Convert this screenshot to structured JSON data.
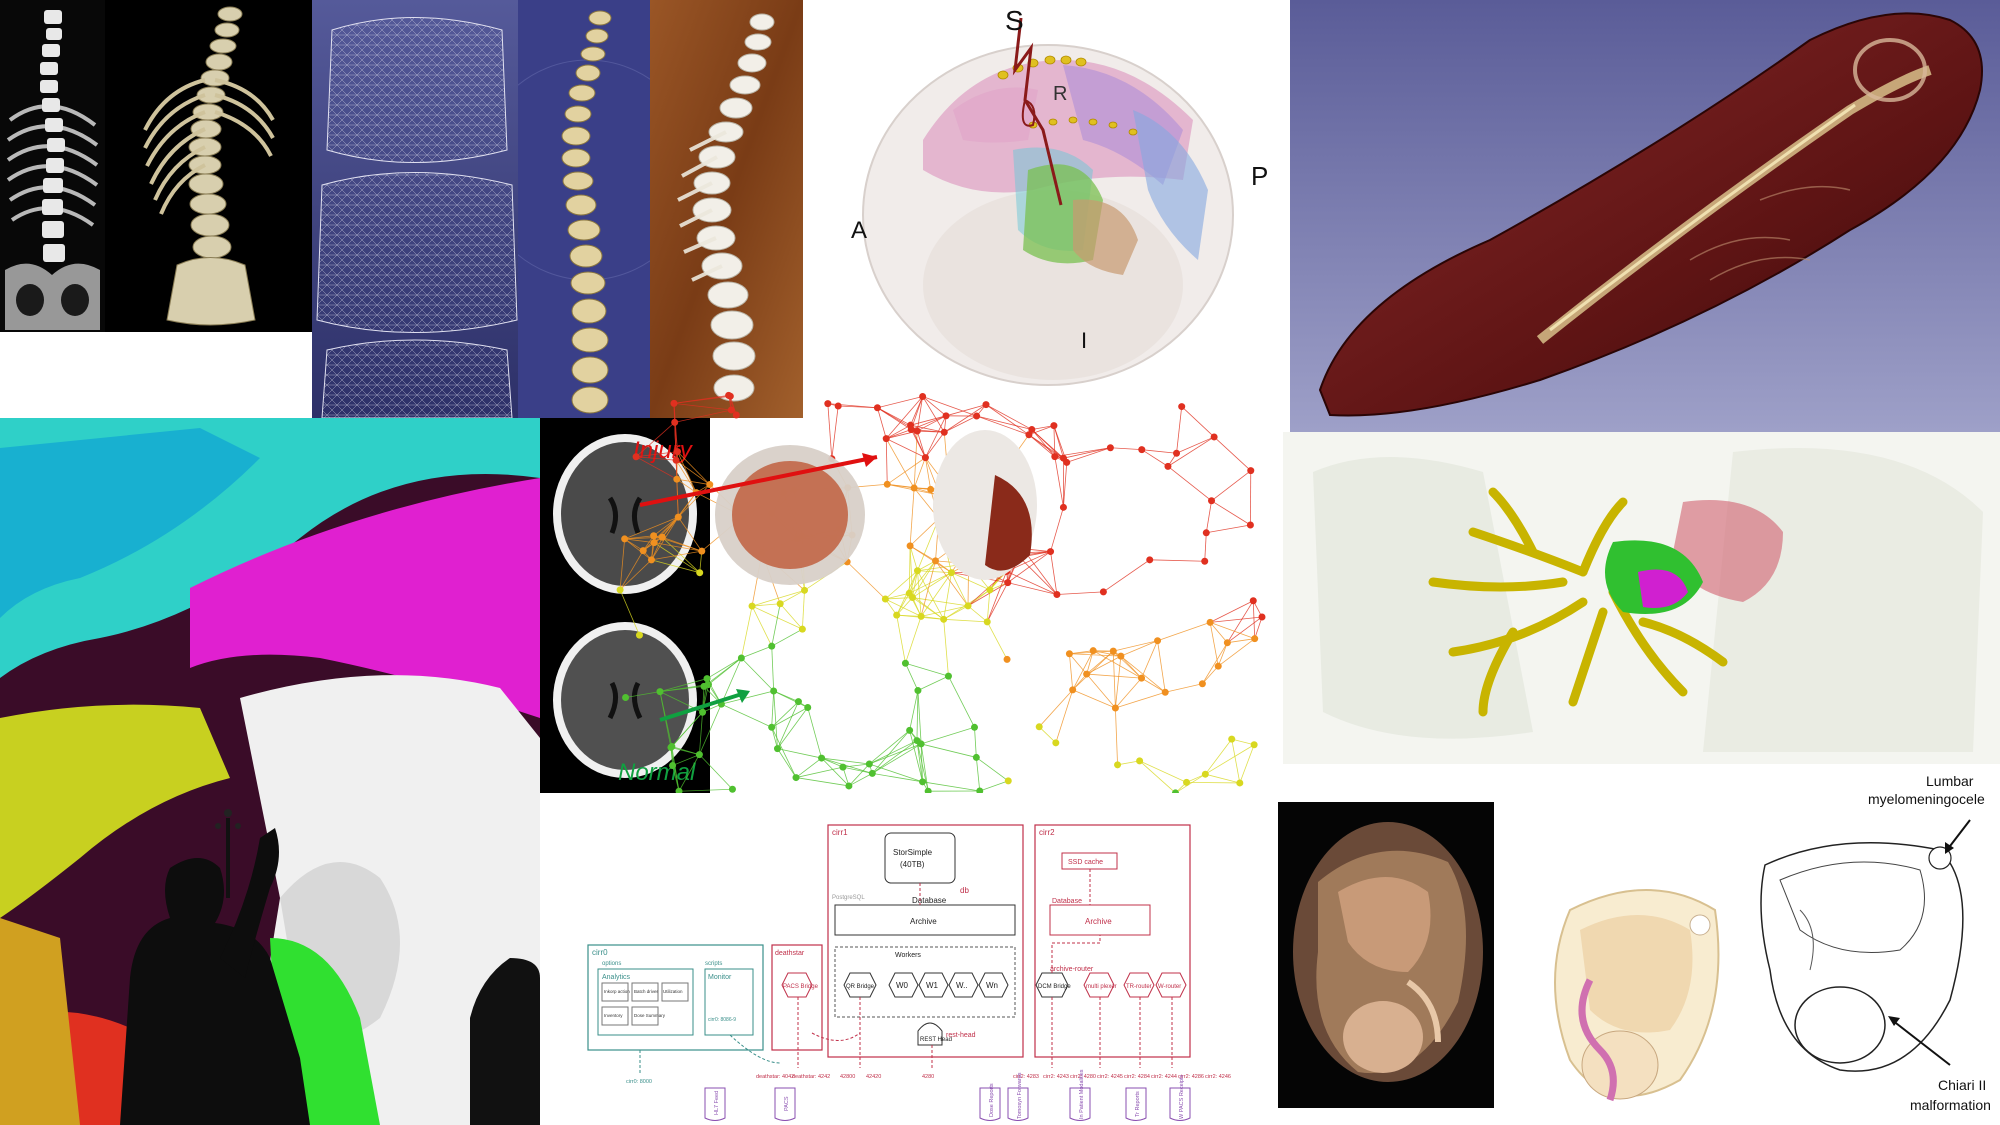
{
  "brain_orientation": {
    "superior": "S",
    "posterior": "P",
    "anterior": "A",
    "inferior": "I",
    "right": "R"
  },
  "ct_labels": {
    "injury": "Injury",
    "normal": "Normal"
  },
  "colors": {
    "injury_label": "#e01010",
    "normal_label": "#10a040",
    "net_red": "#e03020",
    "net_orange": "#f09020",
    "net_yellow": "#d8d820",
    "net_green": "#50c030",
    "diagram_red": "#c0304a",
    "diagram_teal": "#3a8f8a",
    "diagram_purple": "#8a4fb0",
    "skull_brown": "#6b1a1a",
    "lung_yellow": "#c8b400",
    "tumor_magenta": "#d020d0"
  },
  "diagram": {
    "cirr1": "cirr1",
    "cirr2": "cirr2",
    "cirr0": "cirr0",
    "deathstar": "deathstar",
    "storsimple": "StorSimple",
    "storsimple_size": "(40TB)",
    "db": "db",
    "database": "Database",
    "postgresql": "PostgreSQL",
    "archive": "Archive",
    "archive2": "Archive",
    "database2": "Database",
    "workers": "Workers",
    "qr_bridge": "QR Bridge",
    "w0": "W0",
    "w1": "W1",
    "wdots": "W..",
    "wn": "Wn",
    "dcm_bridge": "DCM Bridge",
    "archive_router": "archive-router",
    "ssd_cache": "SSD cache",
    "multi_plexer": "multi plexer",
    "tr_router": "TR-router",
    "w_router": "W-router",
    "rest_head": "REST Head",
    "rest_head_label": "rest-head",
    "analytics": "Analytics",
    "monitor": "Monitor",
    "options": "options",
    "scripts": "scripts",
    "pacs_bridge": "PACS Bridge",
    "pacs": "PACS",
    "hl7_feed": "HL7 Feed",
    "dose_reports": "Dose Reports",
    "tomo_forwards": "Tomosyn Forwards",
    "in_patient": "In Patient Modalities",
    "tr_reports": "Tr Reports",
    "w_pacs": "W PACS Receipts",
    "ports": [
      "cirr0: 8000",
      "deathstar: 4042",
      "deathstar: 4242",
      "42800",
      "42420",
      "4280",
      "cirr2: 4283",
      "cirr2: 4243",
      "cirr2: 4280",
      "cirr2: 4245",
      "cirr2: 4284",
      "cirr2: 4244",
      "cirr2: 4286",
      "cirr2: 4246"
    ],
    "analytics_items": [
      "Inkorp action",
      "Batch driver",
      "Utilization",
      "Inventory",
      "Dose Summary"
    ],
    "cirr0_port2": "cirr0: 8086-9"
  },
  "fetal_labels": {
    "lumbar_line1": "Lumbar",
    "lumbar_line2": "myelomeningocele",
    "chiari_line1": "Chiari II",
    "chiari_line2": "malformation"
  }
}
